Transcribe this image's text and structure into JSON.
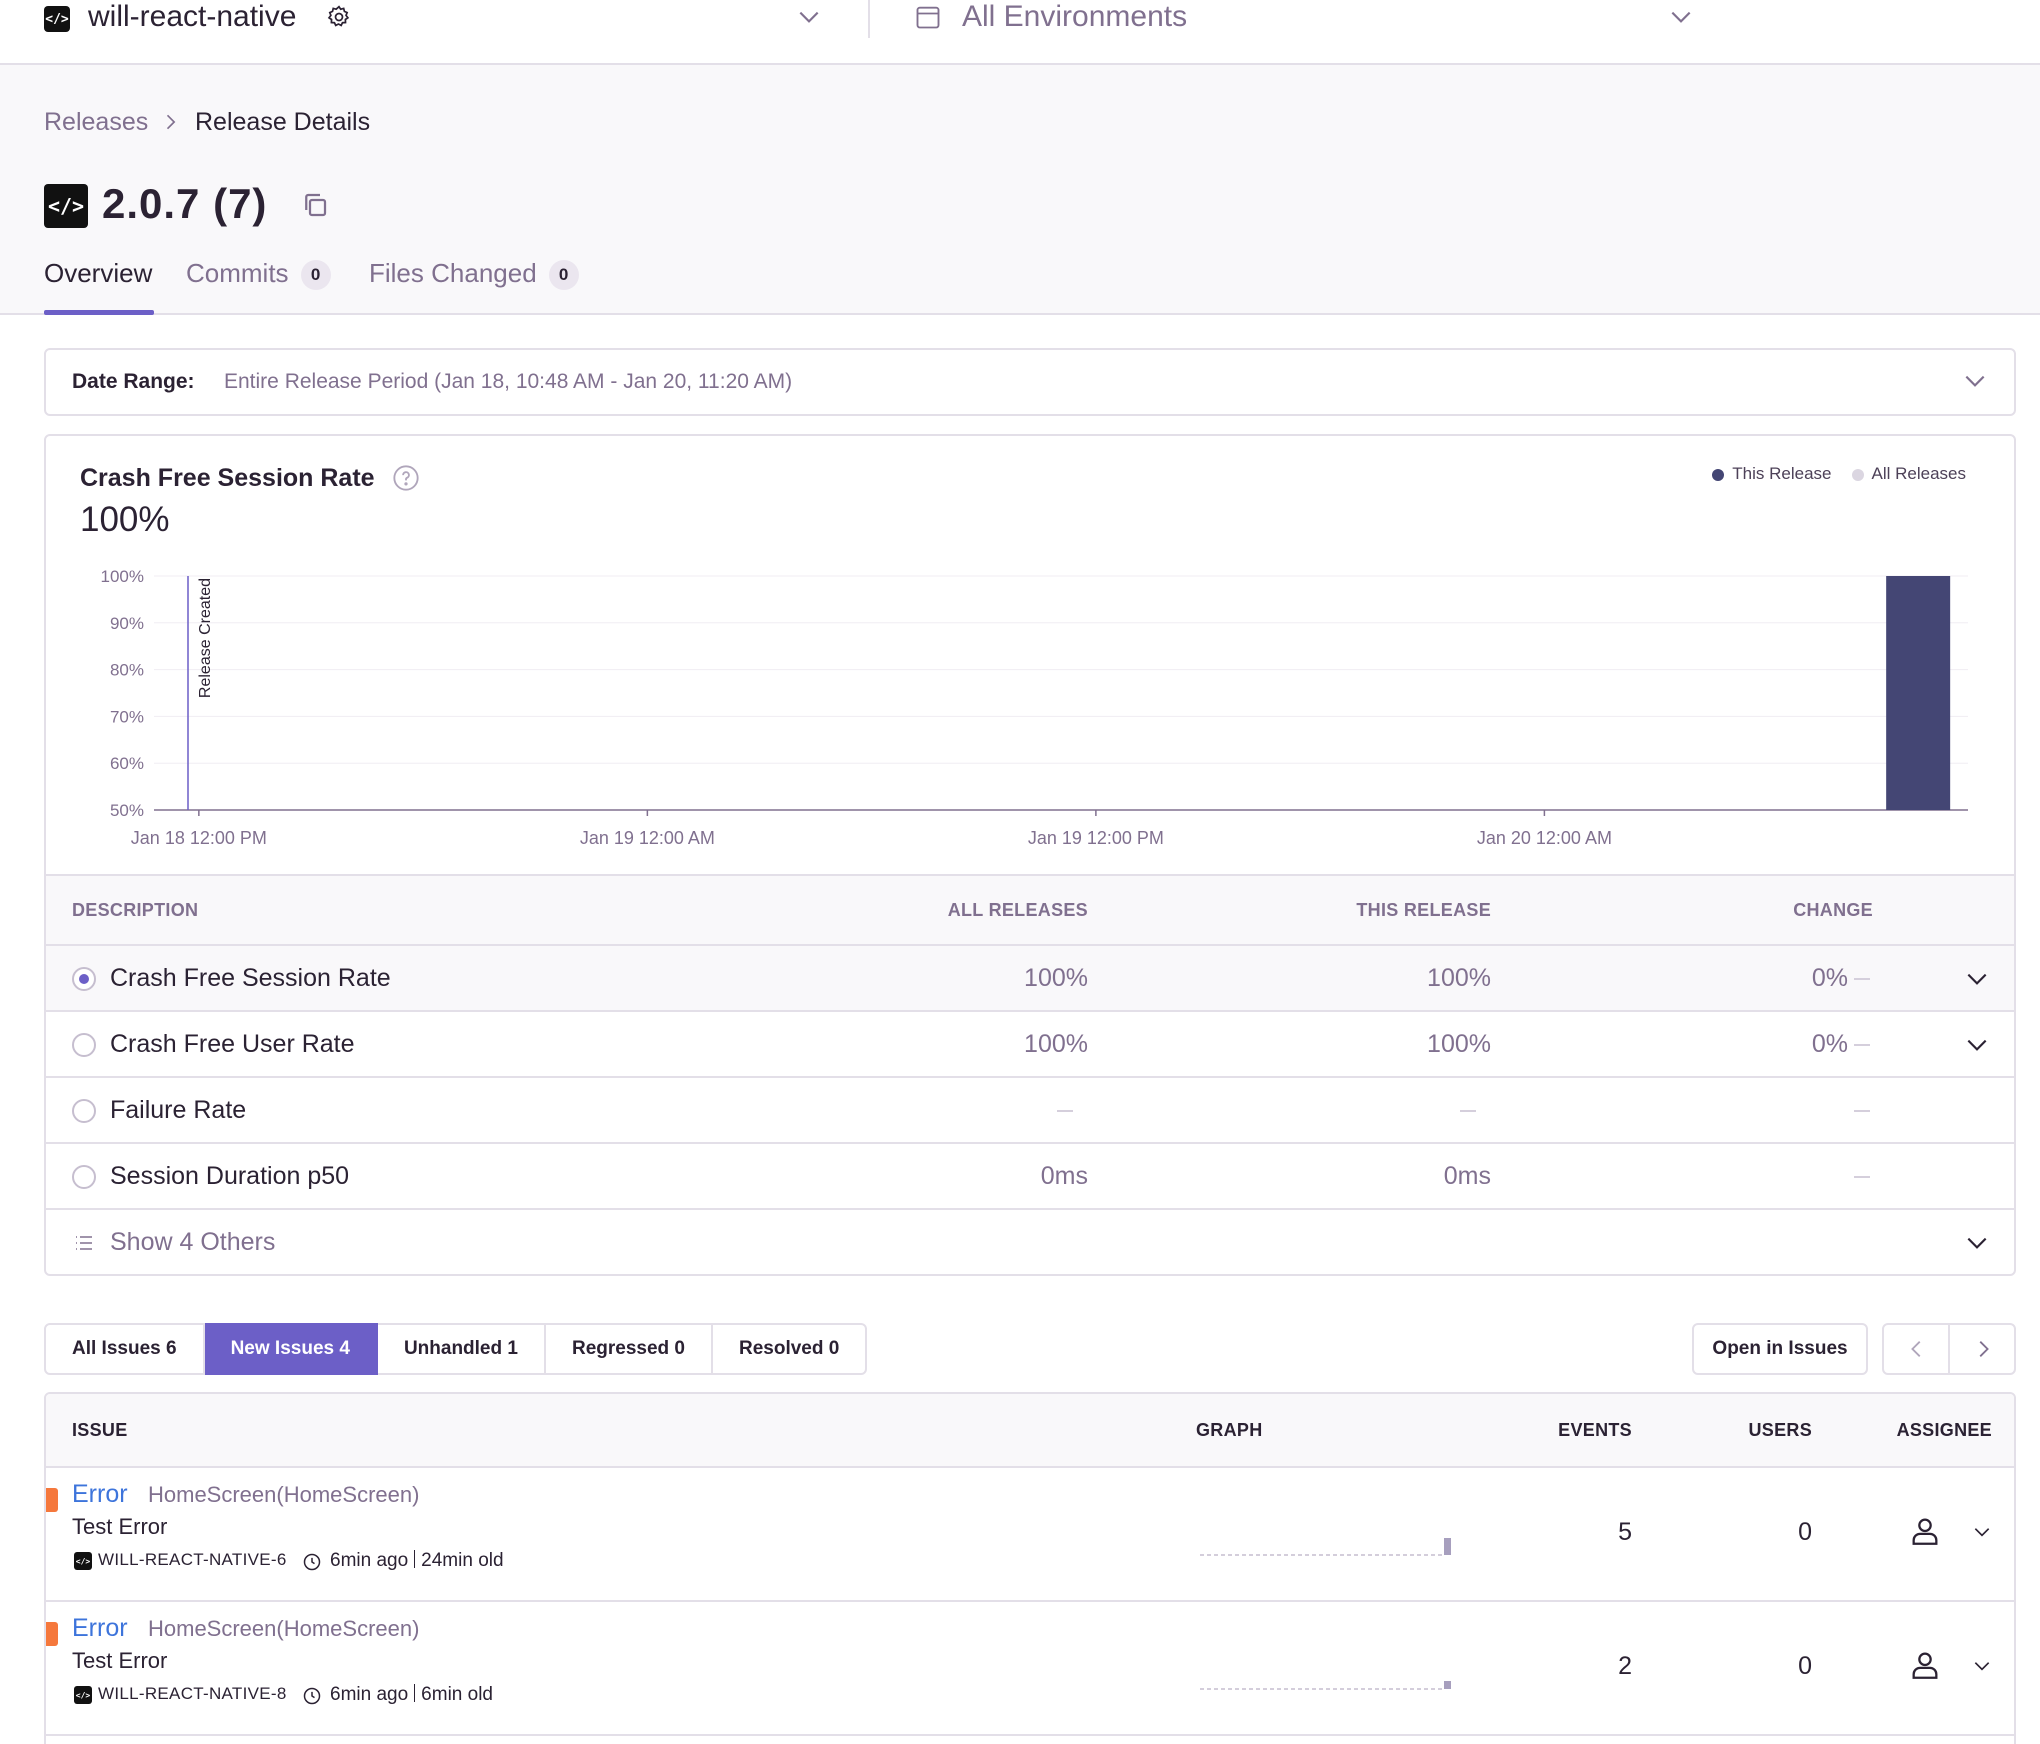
{
  "topbar": {
    "project_icon": "code-icon",
    "project_name": "will-react-native",
    "environment": "All Environments"
  },
  "breadcrumb": {
    "parent": "Releases",
    "current": "Release Details"
  },
  "release": {
    "title": "2.0.7 (7)"
  },
  "tabs": [
    {
      "label": "Overview",
      "active": true
    },
    {
      "label": "Commits",
      "badge": "0"
    },
    {
      "label": "Files Changed",
      "badge": "0"
    }
  ],
  "date_range": {
    "label": "Date Range:",
    "value": "Entire Release Period (Jan 18, 10:48 AM - Jan 20, 11:20 AM)"
  },
  "chart": {
    "title": "Crash Free Session Rate",
    "big_value": "100%",
    "legend": [
      {
        "name": "This Release",
        "color": "#444674"
      },
      {
        "name": "All Releases",
        "color": "#dbd6e1"
      }
    ],
    "marker_label": "Release Created"
  },
  "chart_data": {
    "type": "bar",
    "title": "Crash Free Session Rate",
    "y_ticks": [
      "100%",
      "90%",
      "80%",
      "70%",
      "60%",
      "50%"
    ],
    "ylim": [
      50,
      100
    ],
    "x_ticks": [
      "Jan 18 12:00 PM",
      "Jan 19 12:00 AM",
      "Jan 19 12:00 PM",
      "Jan 20 12:00 AM"
    ],
    "xlim": [
      "2021-01-18T10:48",
      "2021-01-20T11:20"
    ],
    "series": [
      {
        "name": "This Release",
        "points": [
          {
            "x": "2021-01-20T10:00",
            "y": 100
          }
        ]
      }
    ],
    "annotations": [
      {
        "label": "Release Created",
        "x": "2021-01-18T10:48"
      }
    ],
    "grid": true,
    "legend_position": "top-right"
  },
  "metrics_table": {
    "headers": {
      "description": "DESCRIPTION",
      "all": "ALL RELEASES",
      "this": "THIS RELEASE",
      "change": "CHANGE"
    },
    "rows": [
      {
        "name": "Crash Free Session Rate",
        "all": "100%",
        "this": "100%",
        "change": "0%",
        "selected": true
      },
      {
        "name": "Crash Free User Rate",
        "all": "100%",
        "this": "100%",
        "change": "0%"
      },
      {
        "name": "Failure Rate",
        "all": "",
        "this": "",
        "change": ""
      },
      {
        "name": "Session Duration p50",
        "all": "0ms",
        "this": "0ms",
        "change": ""
      }
    ],
    "show_others": "Show 4 Others"
  },
  "issue_filters": [
    {
      "label": "All Issues",
      "count": "6"
    },
    {
      "label": "New Issues",
      "count": "4",
      "active": true
    },
    {
      "label": "Unhandled",
      "count": "1"
    },
    {
      "label": "Regressed",
      "count": "0"
    },
    {
      "label": "Resolved",
      "count": "0"
    }
  ],
  "open_in_issues": "Open in Issues",
  "issues_table": {
    "headers": {
      "issue": "ISSUE",
      "graph": "GRAPH",
      "events": "EVENTS",
      "users": "USERS",
      "assignee": "ASSIGNEE"
    },
    "rows": [
      {
        "type": "Error",
        "location": "HomeScreen(HomeScreen)",
        "message": "Test Error",
        "short_id": "WILL-REACT-NATIVE-6",
        "last_seen": "6min ago",
        "first_seen": "24min old",
        "events": "5",
        "users": "0",
        "level_color": "#f5783c",
        "spark": 0.55
      },
      {
        "type": "Error",
        "location": "HomeScreen(HomeScreen)",
        "message": "Test Error",
        "short_id": "WILL-REACT-NATIVE-8",
        "last_seen": "6min ago",
        "first_seen": "6min old",
        "events": "2",
        "users": "0",
        "level_color": "#f5783c",
        "spark": 0.25
      }
    ]
  }
}
